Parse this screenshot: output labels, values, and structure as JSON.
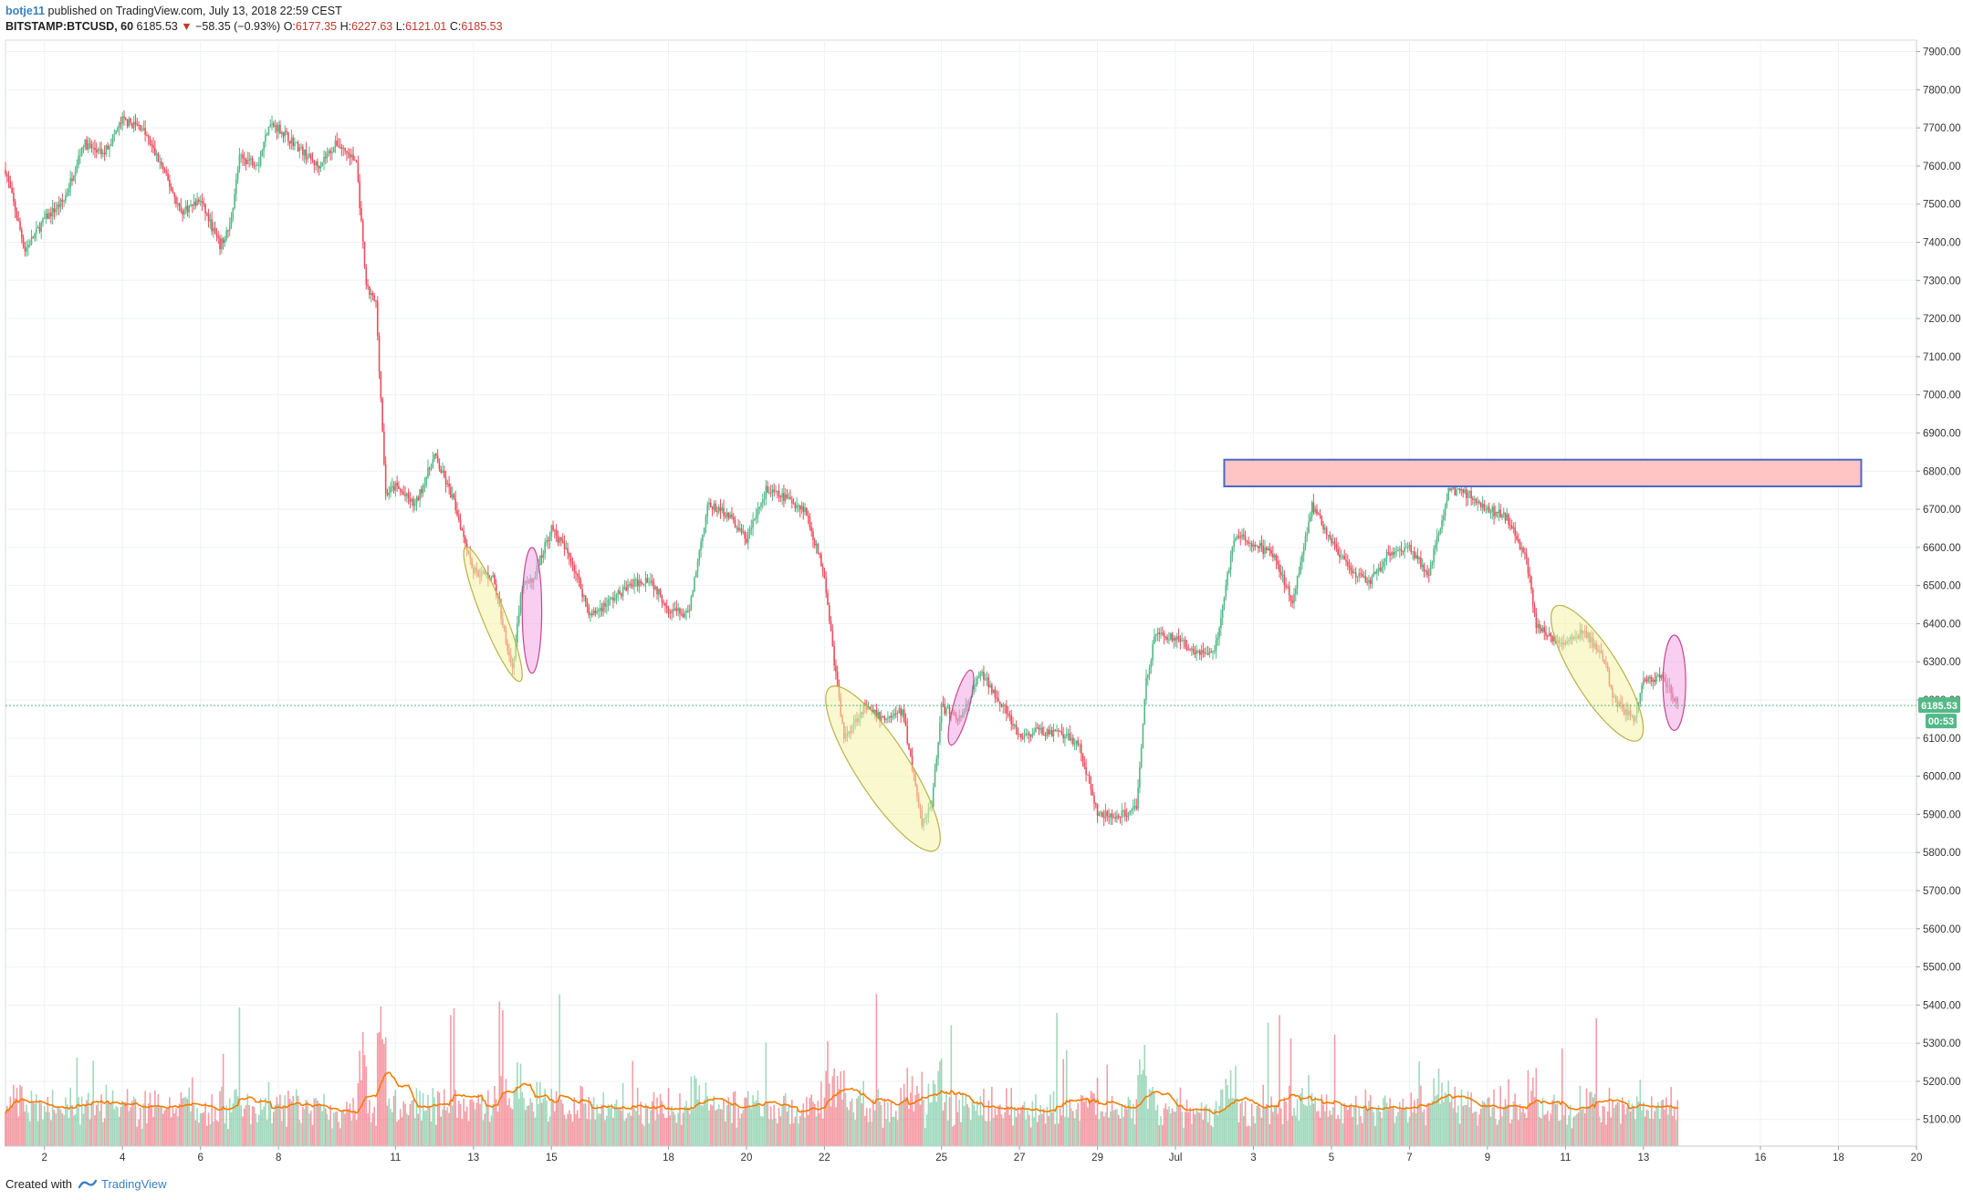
{
  "header": {
    "user": "botje11",
    "published_text": " published on TradingView.com, July 13, 2018 22:59 CEST"
  },
  "ohlc": {
    "symbol": "BITSTAMP:BTCUSD, 60",
    "last": "6185.53",
    "arrow": "▼",
    "change": "−58.35 (−0.93%)",
    "o_label": "O:",
    "o": "6177.35",
    "h_label": "H:",
    "h": "6227.63",
    "l_label": "L:",
    "l": "6121.01",
    "c_label": "C:",
    "c": "6185.53"
  },
  "footer": {
    "created_with": "Created with",
    "brand": "TradingView"
  },
  "colors": {
    "up": "#53b987",
    "down": "#eb4d5c",
    "ma": "#f57c00",
    "grid": "#eef2f4",
    "price_line": "#53b987",
    "zone_fill": "#ffc4c4",
    "zone_border": "#4a68c9",
    "ellipse_yellow": "#f5f3a8",
    "ellipse_pink": "#f3a6e6"
  },
  "chart_data": {
    "type": "candlestick",
    "interval": "60",
    "x_axis_type": "date",
    "x_range": [
      "2018-06-01",
      "2018-07-20"
    ],
    "x_ticks": [
      {
        "label": "2",
        "date": "2018-06-02"
      },
      {
        "label": "4",
        "date": "2018-06-04"
      },
      {
        "label": "6",
        "date": "2018-06-06"
      },
      {
        "label": "8",
        "date": "2018-06-08"
      },
      {
        "label": "11",
        "date": "2018-06-11"
      },
      {
        "label": "13",
        "date": "2018-06-13"
      },
      {
        "label": "15",
        "date": "2018-06-15"
      },
      {
        "label": "18",
        "date": "2018-06-18"
      },
      {
        "label": "20",
        "date": "2018-06-20"
      },
      {
        "label": "22",
        "date": "2018-06-22"
      },
      {
        "label": "25",
        "date": "2018-06-25"
      },
      {
        "label": "27",
        "date": "2018-06-27"
      },
      {
        "label": "29",
        "date": "2018-06-29"
      },
      {
        "label": "Jul",
        "date": "2018-07-01"
      },
      {
        "label": "3",
        "date": "2018-07-03"
      },
      {
        "label": "5",
        "date": "2018-07-05"
      },
      {
        "label": "7",
        "date": "2018-07-07"
      },
      {
        "label": "9",
        "date": "2018-07-09"
      },
      {
        "label": "11",
        "date": "2018-07-11"
      },
      {
        "label": "13",
        "date": "2018-07-13"
      },
      {
        "label": "16",
        "date": "2018-07-16"
      },
      {
        "label": "18",
        "date": "2018-07-18"
      },
      {
        "label": "20",
        "date": "2018-07-20"
      }
    ],
    "y_range": [
      5030,
      7930
    ],
    "y_ticks": [
      "7900.00",
      "7800.00",
      "7700.00",
      "7600.00",
      "7500.00",
      "7400.00",
      "7300.00",
      "7200.00",
      "7100.00",
      "7000.00",
      "6900.00",
      "6800.00",
      "6700.00",
      "6600.00",
      "6500.00",
      "6400.00",
      "6300.00",
      "6200.00",
      "6100.00",
      "6000.00",
      "5900.00",
      "5800.00",
      "5700.00",
      "5600.00",
      "5500.00",
      "5400.00",
      "5300.00",
      "5200.00",
      "5100.00"
    ],
    "last_price": 6185.53,
    "last_price_label": "6185.53",
    "countdown_label": "00:53",
    "price_path": [
      [
        "2018-06-01",
        7590
      ],
      [
        "2018-06-01T12:00",
        7380
      ],
      [
        "2018-06-02",
        7460
      ],
      [
        "2018-06-02T12:00",
        7510
      ],
      [
        "2018-06-03",
        7660
      ],
      [
        "2018-06-03T12:00",
        7630
      ],
      [
        "2018-06-04",
        7720
      ],
      [
        "2018-06-04T12:00",
        7700
      ],
      [
        "2018-06-05",
        7600
      ],
      [
        "2018-06-05T12:00",
        7480
      ],
      [
        "2018-06-06",
        7510
      ],
      [
        "2018-06-06T12:00",
        7390
      ],
      [
        "2018-06-06T18:00",
        7440
      ],
      [
        "2018-06-07",
        7620
      ],
      [
        "2018-06-07T12:00",
        7610
      ],
      [
        "2018-06-07T18:00",
        7710
      ],
      [
        "2018-06-08",
        7700
      ],
      [
        "2018-06-08T12:00",
        7650
      ],
      [
        "2018-06-09",
        7600
      ],
      [
        "2018-06-09T12:00",
        7660
      ],
      [
        "2018-06-10",
        7610
      ],
      [
        "2018-06-10T06:00",
        7280
      ],
      [
        "2018-06-10T12:00",
        7240
      ],
      [
        "2018-06-10T18:00",
        6740
      ],
      [
        "2018-06-11",
        6760
      ],
      [
        "2018-06-11T12:00",
        6710
      ],
      [
        "2018-06-12",
        6840
      ],
      [
        "2018-06-12T12:00",
        6720
      ],
      [
        "2018-06-13",
        6540
      ],
      [
        "2018-06-13T12:00",
        6520
      ],
      [
        "2018-06-14",
        6280
      ],
      [
        "2018-06-14T06:00",
        6500
      ],
      [
        "2018-06-14T12:00",
        6510
      ],
      [
        "2018-06-15",
        6650
      ],
      [
        "2018-06-15T12:00",
        6570
      ],
      [
        "2018-06-16",
        6420
      ],
      [
        "2018-06-16T12:00",
        6460
      ],
      [
        "2018-06-17",
        6500
      ],
      [
        "2018-06-17T12:00",
        6520
      ],
      [
        "2018-06-18",
        6440
      ],
      [
        "2018-06-18T12:00",
        6420
      ],
      [
        "2018-06-19",
        6710
      ],
      [
        "2018-06-19T12:00",
        6690
      ],
      [
        "2018-06-20",
        6620
      ],
      [
        "2018-06-20T12:00",
        6750
      ],
      [
        "2018-06-21",
        6730
      ],
      [
        "2018-06-21T12:00",
        6700
      ],
      [
        "2018-06-22",
        6530
      ],
      [
        "2018-06-22T06:00",
        6300
      ],
      [
        "2018-06-22T12:00",
        6100
      ],
      [
        "2018-06-23",
        6180
      ],
      [
        "2018-06-23T12:00",
        6150
      ],
      [
        "2018-06-24",
        6170
      ],
      [
        "2018-06-24T12:00",
        5880
      ],
      [
        "2018-06-24T18:00",
        5930
      ],
      [
        "2018-06-25",
        6180
      ],
      [
        "2018-06-25T12:00",
        6150
      ],
      [
        "2018-06-26",
        6270
      ],
      [
        "2018-06-26T12:00",
        6200
      ],
      [
        "2018-06-27",
        6100
      ],
      [
        "2018-06-27T12:00",
        6120
      ],
      [
        "2018-06-28",
        6110
      ],
      [
        "2018-06-28T12:00",
        6090
      ],
      [
        "2018-06-29",
        5900
      ],
      [
        "2018-06-29T12:00",
        5890
      ],
      [
        "2018-06-30",
        5920
      ],
      [
        "2018-06-30T06:00",
        6250
      ],
      [
        "2018-06-30T12:00",
        6380
      ],
      [
        "2018-07-01",
        6360
      ],
      [
        "2018-07-01T12:00",
        6330
      ],
      [
        "2018-07-02",
        6320
      ],
      [
        "2018-07-02T12:00",
        6630
      ],
      [
        "2018-07-03",
        6610
      ],
      [
        "2018-07-03T12:00",
        6580
      ],
      [
        "2018-07-04",
        6460
      ],
      [
        "2018-07-04T12:00",
        6710
      ],
      [
        "2018-07-05",
        6620
      ],
      [
        "2018-07-05T12:00",
        6530
      ],
      [
        "2018-07-06",
        6510
      ],
      [
        "2018-07-06T12:00",
        6590
      ],
      [
        "2018-07-07",
        6600
      ],
      [
        "2018-07-07T12:00",
        6530
      ],
      [
        "2018-07-08",
        6750
      ],
      [
        "2018-07-08T12:00",
        6740
      ],
      [
        "2018-07-09",
        6700
      ],
      [
        "2018-07-09T12:00",
        6680
      ],
      [
        "2018-07-10",
        6570
      ],
      [
        "2018-07-10T06:00",
        6400
      ],
      [
        "2018-07-10T12:00",
        6370
      ],
      [
        "2018-07-11",
        6350
      ],
      [
        "2018-07-11T12:00",
        6380
      ],
      [
        "2018-07-12",
        6300
      ],
      [
        "2018-07-12T06:00",
        6200
      ],
      [
        "2018-07-12T12:00",
        6170
      ],
      [
        "2018-07-12T18:00",
        6150
      ],
      [
        "2018-07-13",
        6250
      ],
      [
        "2018-07-13T12:00",
        6260
      ],
      [
        "2018-07-13T21:00",
        6185.53
      ]
    ],
    "volume_scale": [
      0,
      100
    ],
    "resistance_zone": {
      "price_low": 6760,
      "price_high": 6830,
      "from": "2018-07-02T06:00",
      "to": "2018-07-18T14:00"
    },
    "ellipses": [
      {
        "color": "yellow",
        "from": "2018-06-12T20:00",
        "to": "2018-06-14T04:00",
        "price_low": 6230,
        "price_high": 6620,
        "tilt": -22
      },
      {
        "color": "pink",
        "from": "2018-06-14T06:00",
        "to": "2018-06-14T18:00",
        "price_low": 6270,
        "price_high": 6600,
        "tilt": 0
      },
      {
        "color": "yellow",
        "from": "2018-06-22T00:00",
        "to": "2018-06-25T00:00",
        "price_low": 5790,
        "price_high": 6250,
        "tilt": -33
      },
      {
        "color": "pink",
        "from": "2018-06-25T01:00",
        "to": "2018-06-25T23:00",
        "price_low": 6080,
        "price_high": 6280,
        "tilt": 15
      },
      {
        "color": "yellow",
        "from": "2018-07-10T12:00",
        "to": "2018-07-13T03:00",
        "price_low": 6090,
        "price_high": 6450,
        "tilt": -32
      },
      {
        "color": "pink",
        "from": "2018-07-13T12:00",
        "to": "2018-07-14T02:00",
        "price_low": 6120,
        "price_high": 6370,
        "tilt": 0
      }
    ]
  }
}
